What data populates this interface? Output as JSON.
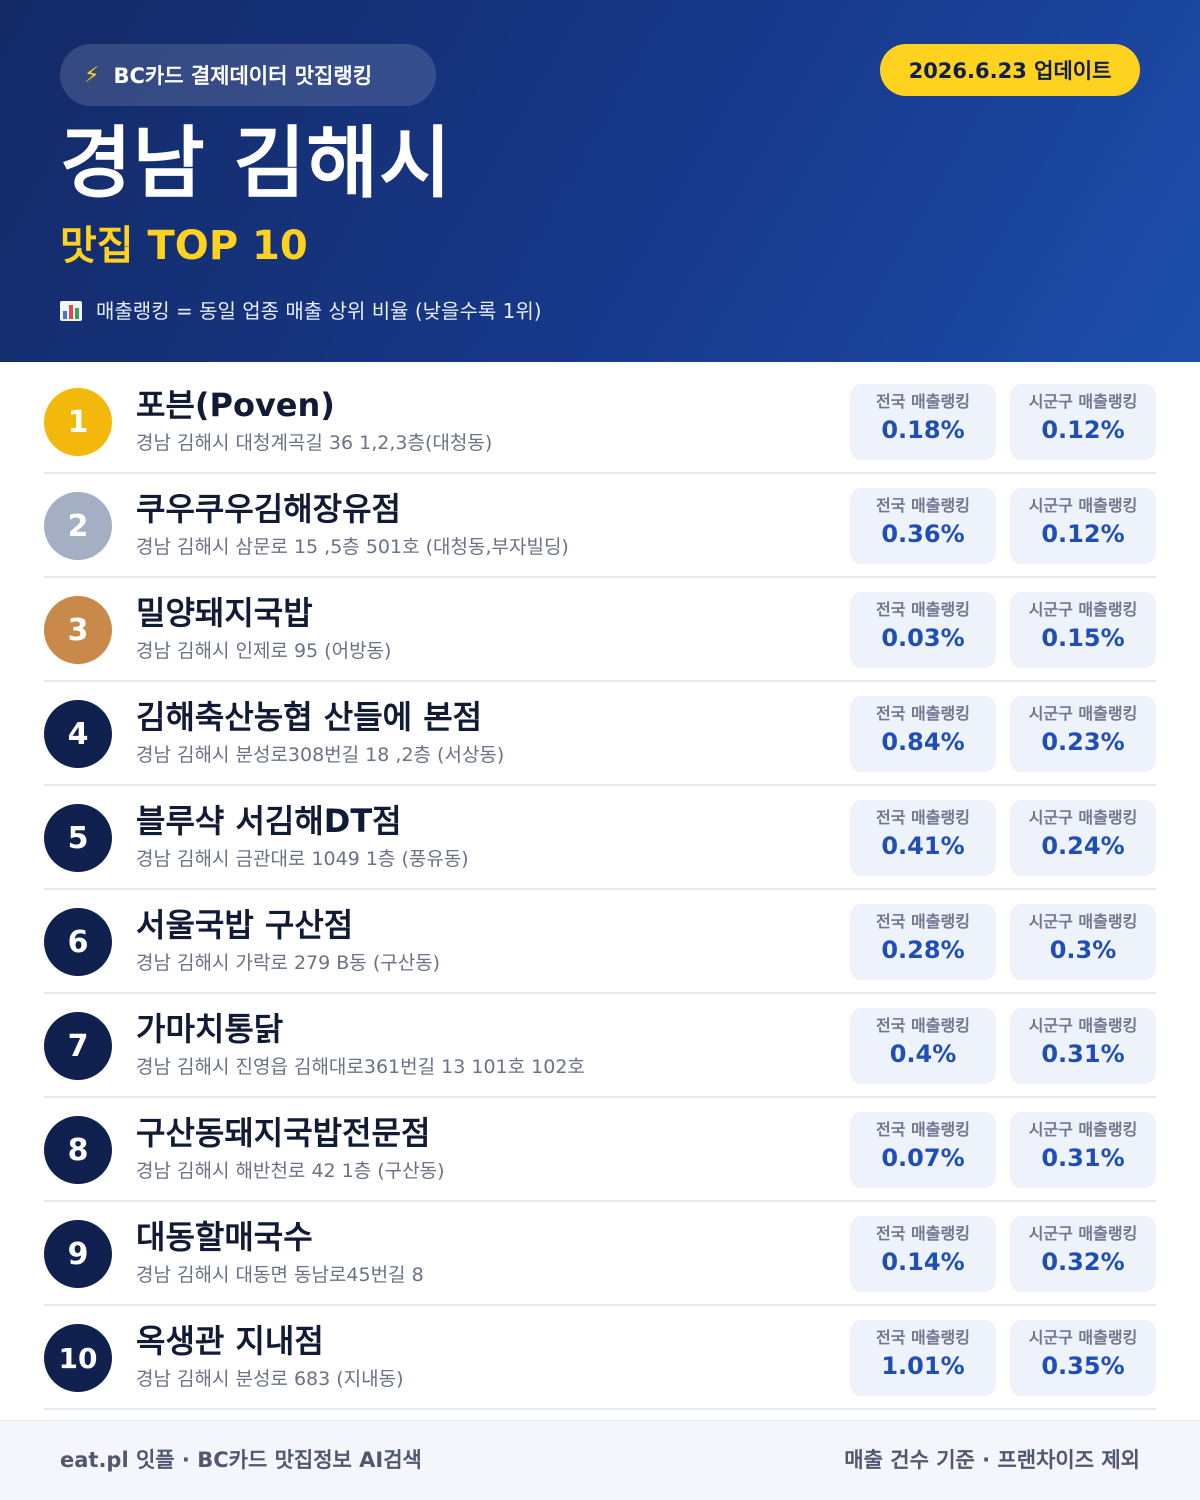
{
  "header": {
    "source_icon": "lightning-bolt-icon",
    "source_label": "BC카드 결제데이터 맛집랭킹",
    "update_label": "2026.6.23 업데이트",
    "title": "경남 김해시",
    "subtitle": "맛집 TOP 10",
    "legend_icon": "bar-chart-icon",
    "legend_text": "매출랭킹 = 동일 업종 매출 상위 비율 (낮을수록 1위)"
  },
  "stat_labels": {
    "national": "전국 매출랭킹",
    "local": "시군구 매출랭킹"
  },
  "colors": {
    "header_start": "#132a66",
    "header_end": "#1d4eaa",
    "accent_yellow": "#ffd21f",
    "gold": "#f2b90c",
    "silver": "#a5afc3",
    "bronze": "#c8894b",
    "navy": "#10214f",
    "value_blue": "#1f4fb6"
  },
  "restaurants": [
    {
      "rank": "1",
      "name": "포븐(Poven)",
      "address": "경남 김해시 대청계곡길 36 1,2,3층(대청동)",
      "national": "0.18%",
      "local": "0.12%"
    },
    {
      "rank": "2",
      "name": "쿠우쿠우김해장유점",
      "address": "경남 김해시 삼문로 15 ,5층 501호 (대청동,부자빌딩)",
      "national": "0.36%",
      "local": "0.12%"
    },
    {
      "rank": "3",
      "name": "밀양돼지국밥",
      "address": "경남 김해시 인제로 95 (어방동)",
      "national": "0.03%",
      "local": "0.15%"
    },
    {
      "rank": "4",
      "name": "김해축산농협 산들에 본점",
      "address": "경남 김해시 분성로308번길 18 ,2층 (서상동)",
      "national": "0.84%",
      "local": "0.23%"
    },
    {
      "rank": "5",
      "name": "블루샥 서김해DT점",
      "address": "경남 김해시 금관대로 1049 1층 (풍유동)",
      "national": "0.41%",
      "local": "0.24%"
    },
    {
      "rank": "6",
      "name": "서울국밥 구산점",
      "address": "경남 김해시 가락로 279 B동 (구산동)",
      "national": "0.28%",
      "local": "0.3%"
    },
    {
      "rank": "7",
      "name": "가마치통닭",
      "address": "경남 김해시 진영읍 김해대로361번길 13 101호 102호",
      "national": "0.4%",
      "local": "0.31%"
    },
    {
      "rank": "8",
      "name": "구산동돼지국밥전문점",
      "address": "경남 김해시 해반천로 42 1층 (구산동)",
      "national": "0.07%",
      "local": "0.31%"
    },
    {
      "rank": "9",
      "name": "대동할매국수",
      "address": "경남 김해시 대동면 동남로45번길 8",
      "national": "0.14%",
      "local": "0.32%"
    },
    {
      "rank": "10",
      "name": "옥생관 지내점",
      "address": "경남 김해시 분성로 683 (지내동)",
      "national": "1.01%",
      "local": "0.35%"
    }
  ],
  "footer": {
    "left": "eat.pl 잇플 · BC카드 맛집정보 AI검색",
    "right": "매출 건수 기준 · 프랜차이즈 제외"
  }
}
